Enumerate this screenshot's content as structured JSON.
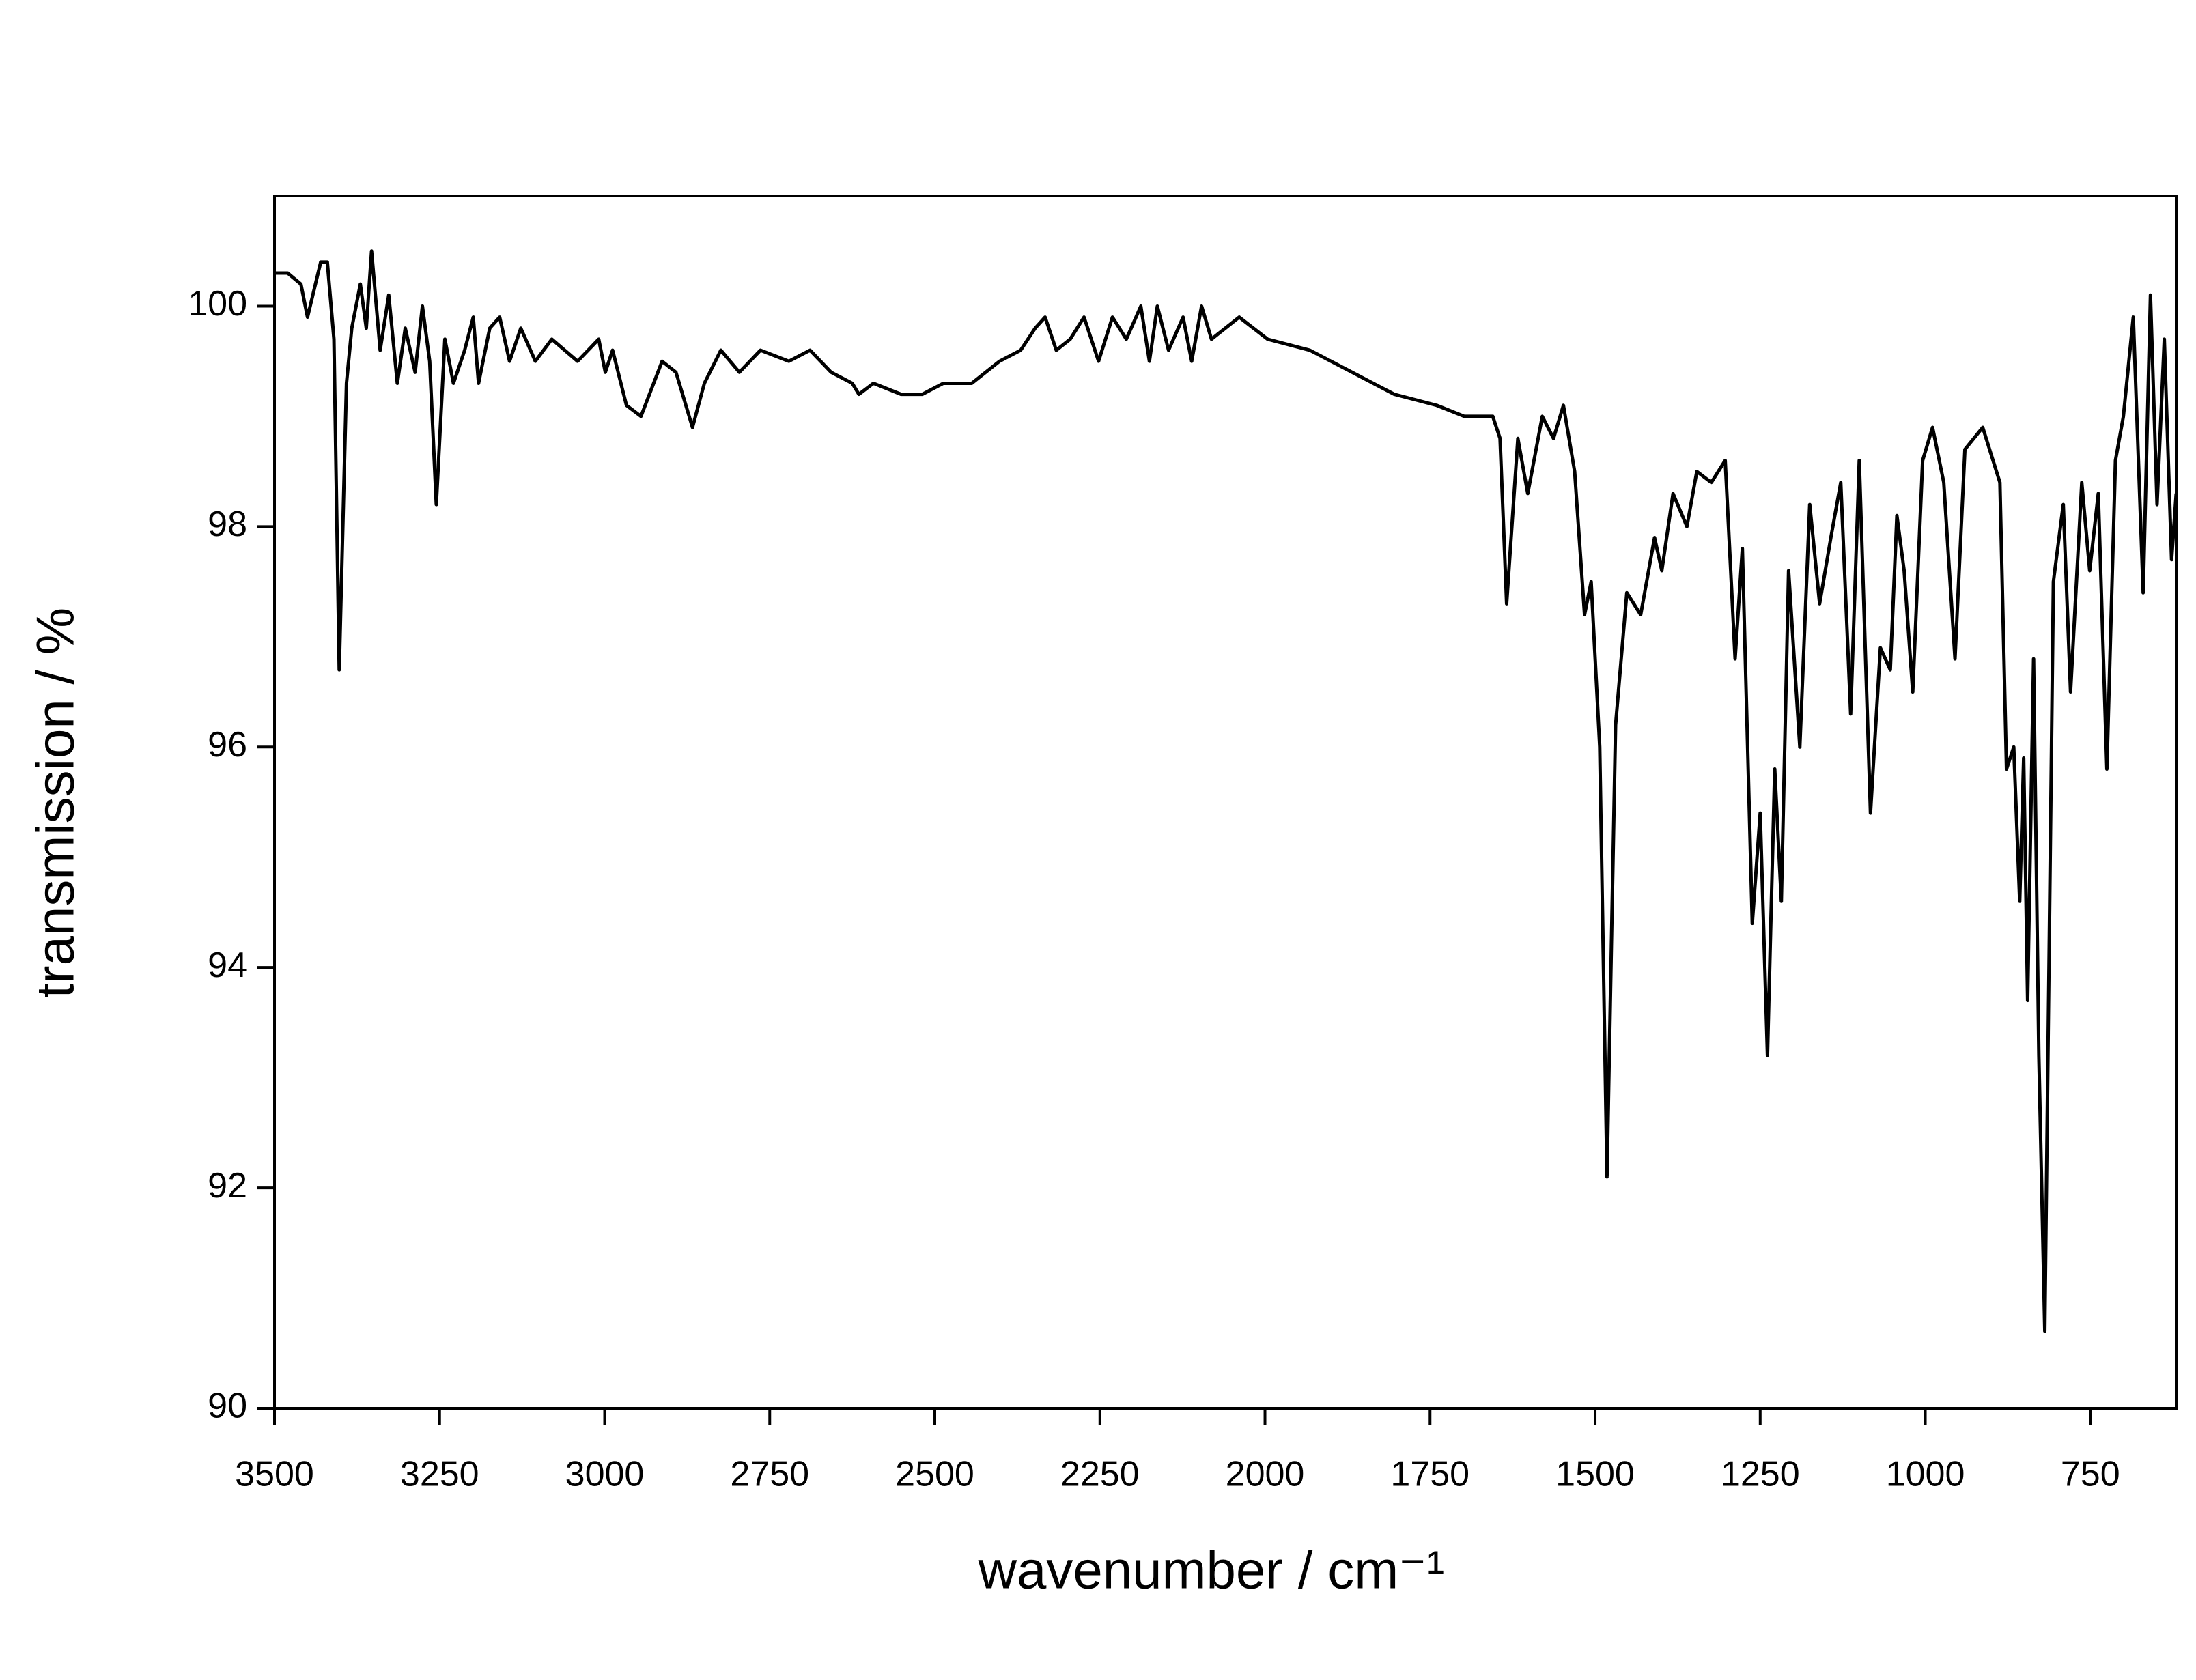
{
  "chart_data": {
    "type": "line",
    "x_label": "wavenumber / cm⁻¹",
    "y_label": "transmission / %",
    "xlim": [
      3500,
      620
    ],
    "ylim": [
      90,
      101
    ],
    "xticks": [
      3500,
      3250,
      3000,
      2750,
      2500,
      2250,
      2000,
      1750,
      1500,
      1250,
      1000,
      750
    ],
    "yticks": [
      90,
      92,
      94,
      96,
      98,
      100
    ],
    "color": "#000000",
    "x": [
      3500,
      3480,
      3460,
      3450,
      3430,
      3420,
      3410,
      3402,
      3391,
      3383,
      3370,
      3361,
      3353,
      3340,
      3327,
      3314,
      3302,
      3287,
      3276,
      3265,
      3255,
      3242,
      3229,
      3212,
      3199,
      3191,
      3174,
      3159,
      3144,
      3127,
      3105,
      3080,
      3041,
      3009,
      2999,
      2988,
      2967,
      2945,
      2913,
      2892,
      2867,
      2849,
      2824,
      2796,
      2764,
      2721,
      2689,
      2657,
      2625,
      2615,
      2593,
      2551,
      2519,
      2487,
      2444,
      2402,
      2370,
      2348,
      2333,
      2316,
      2295,
      2274,
      2252,
      2231,
      2210,
      2188,
      2175,
      2163,
      2146,
      2124,
      2111,
      2096,
      2081,
      2060,
      2039,
      1996,
      1932,
      1868,
      1804,
      1740,
      1698,
      1655,
      1644,
      1634,
      1617,
      1602,
      1580,
      1563,
      1548,
      1531,
      1516,
      1506,
      1493,
      1482,
      1469,
      1452,
      1431,
      1410,
      1399,
      1382,
      1361,
      1346,
      1324,
      1303,
      1288,
      1277,
      1262,
      1250,
      1239,
      1228,
      1218,
      1207,
      1190,
      1175,
      1160,
      1143,
      1128,
      1113,
      1100,
      1083,
      1068,
      1053,
      1043,
      1032,
      1019,
      1004,
      989,
      972,
      955,
      940,
      913,
      887,
      877,
      866,
      857,
      851,
      845,
      836,
      828,
      819,
      806,
      791,
      780,
      763,
      751,
      738,
      725,
      712,
      700,
      685,
      670,
      659,
      649,
      638,
      627,
      620
    ],
    "values": [
      100.3,
      100.3,
      100.2,
      99.9,
      100.4,
      100.4,
      99.7,
      96.7,
      99.3,
      99.8,
      100.2,
      99.8,
      100.5,
      99.6,
      100.1,
      99.3,
      99.8,
      99.4,
      100.0,
      99.5,
      98.2,
      99.7,
      99.3,
      99.6,
      99.9,
      99.3,
      99.8,
      99.9,
      99.5,
      99.8,
      99.5,
      99.7,
      99.5,
      99.7,
      99.4,
      99.6,
      99.1,
      99.0,
      99.5,
      99.4,
      98.9,
      99.3,
      99.6,
      99.4,
      99.6,
      99.5,
      99.6,
      99.4,
      99.3,
      99.2,
      99.3,
      99.2,
      99.2,
      99.3,
      99.3,
      99.5,
      99.6,
      99.8,
      99.9,
      99.6,
      99.7,
      99.9,
      99.5,
      99.9,
      99.7,
      100.0,
      99.5,
      100.0,
      99.6,
      99.9,
      99.5,
      100.0,
      99.7,
      99.8,
      99.9,
      99.7,
      99.6,
      99.4,
      99.2,
      99.1,
      99.0,
      99.0,
      98.8,
      97.3,
      98.8,
      98.3,
      99.0,
      98.8,
      99.1,
      98.5,
      97.2,
      97.5,
      96.0,
      92.1,
      96.2,
      97.4,
      97.2,
      97.9,
      97.6,
      98.3,
      98.0,
      98.5,
      98.4,
      98.6,
      96.8,
      97.8,
      94.4,
      95.4,
      93.2,
      95.8,
      94.6,
      97.6,
      96.0,
      98.2,
      97.3,
      97.9,
      98.4,
      96.3,
      98.6,
      95.4,
      96.9,
      96.7,
      98.1,
      97.6,
      96.5,
      98.6,
      98.9,
      98.4,
      96.8,
      98.7,
      98.9,
      98.4,
      95.8,
      96.0,
      94.6,
      95.9,
      93.7,
      96.8,
      93.2,
      90.7,
      97.5,
      98.2,
      96.5,
      98.4,
      97.6,
      98.3,
      95.8,
      98.6,
      99.0,
      99.9,
      97.4,
      100.1,
      98.2,
      99.7,
      97.7,
      98.3
    ]
  }
}
